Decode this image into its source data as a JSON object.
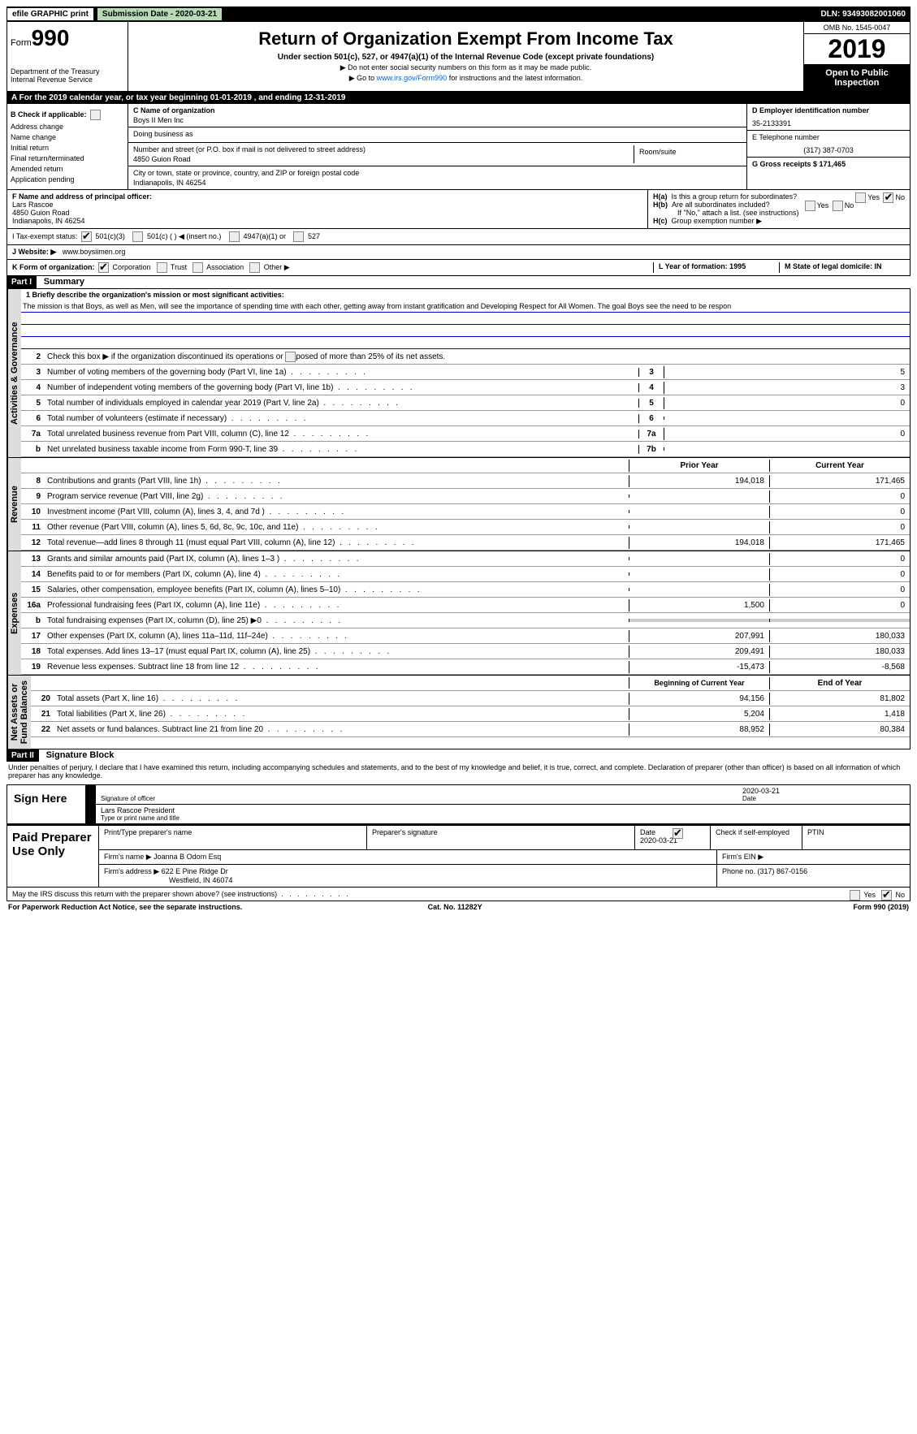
{
  "topbar": {
    "efile": "efile GRAPHIC print",
    "submission": "Submission Date - 2020-03-21",
    "dln": "DLN: 93493082001060"
  },
  "header": {
    "form_prefix": "Form",
    "form_num": "990",
    "dept": "Department of the Treasury\nInternal Revenue Service",
    "title": "Return of Organization Exempt From Income Tax",
    "subtitle": "Under section 501(c), 527, or 4947(a)(1) of the Internal Revenue Code (except private foundations)",
    "note1": "▶ Do not enter social security numbers on this form as it may be made public.",
    "note2_prefix": "▶ Go to ",
    "note2_link": "www.irs.gov/Form990",
    "note2_suffix": " for instructions and the latest information.",
    "omb": "OMB No. 1545-0047",
    "year": "2019",
    "open": "Open to Public Inspection"
  },
  "row_a": "A   For the 2019 calendar year, or tax year beginning 01-01-2019        , and ending 12-31-2019",
  "section_b": {
    "b_label": "B Check if applicable:",
    "checks": [
      "Address change",
      "Name change",
      "Initial return",
      "Final return/terminated",
      "Amended return",
      "Application pending"
    ],
    "c_label": "C Name of organization",
    "c_val": "Boys II Men Inc",
    "dba_label": "Doing business as",
    "dba_val": "",
    "street_label": "Number and street (or P.O. box if mail is not delivered to street address)",
    "street_val": "4850 Guion Road",
    "room_label": "Room/suite",
    "city_label": "City or town, state or province, country, and ZIP or foreign postal code",
    "city_val": "Indianapolis, IN   46254",
    "d_label": "D Employer identification number",
    "d_val": "35-2133391",
    "e_label": "E Telephone number",
    "e_val": "(317) 387-0703",
    "g_label": "G Gross receipts $ 171,465"
  },
  "row_f": {
    "f_label": "F  Name and address of principal officer:",
    "f_name": "Lars Rascoe",
    "f_addr1": "4850 Guion Road",
    "f_addr2": "Indianapolis, IN   46254",
    "ha_label": "H(a)",
    "ha_text": "Is this a group return for subordinates?",
    "hb_label": "H(b)",
    "hb_text": "Are all subordinates included?",
    "hb_note": "If \"No,\" attach a list. (see instructions)",
    "hc_label": "H(c)",
    "hc_text": "Group exemption number ▶"
  },
  "row_i": {
    "i_label": "I     Tax-exempt status:",
    "opts": [
      "501(c)(3)",
      "501(c) (  ) ◀ (insert no.)",
      "4947(a)(1) or",
      "527"
    ]
  },
  "row_j": {
    "j_label": "J    Website: ▶",
    "j_val": "www.boysiimen.org"
  },
  "row_k": {
    "k_label": "K Form of organization:",
    "opts": [
      "Corporation",
      "Trust",
      "Association",
      "Other ▶"
    ],
    "l_label": "L Year of formation: 1995",
    "m_label": "M State of legal domicile: IN"
  },
  "part1": {
    "hdr": "Part I",
    "title": "Summary",
    "line1_label": "1  Briefly describe the organization's mission or most significant activities:",
    "line1_text": "The mission is that Boys, as well as Men, will see the importance of spending time with each other, getting away from instant gratification and Developing Respect for All Women. The goal Boys see the need to be respon",
    "line2": "Check this box ▶       if the organization discontinued its operations or disposed of more than 25% of its net assets.",
    "rows_ag": [
      {
        "n": "3",
        "t": "Number of voting members of the governing body (Part VI, line 1a)",
        "nb": "3",
        "v": "5"
      },
      {
        "n": "4",
        "t": "Number of independent voting members of the governing body (Part VI, line 1b)",
        "nb": "4",
        "v": "3"
      },
      {
        "n": "5",
        "t": "Total number of individuals employed in calendar year 2019 (Part V, line 2a)",
        "nb": "5",
        "v": "0"
      },
      {
        "n": "6",
        "t": "Total number of volunteers (estimate if necessary)",
        "nb": "6",
        "v": ""
      },
      {
        "n": "7a",
        "t": "Total unrelated business revenue from Part VIII, column (C), line 12",
        "nb": "7a",
        "v": "0"
      },
      {
        "n": "b",
        "t": "Net unrelated business taxable income from Form 990-T, line 39",
        "nb": "7b",
        "v": ""
      }
    ],
    "col_hdr": {
      "c1": "Prior Year",
      "c2": "Current Year"
    },
    "rows_rev": [
      {
        "n": "8",
        "t": "Contributions and grants (Part VIII, line 1h)",
        "c1": "194,018",
        "c2": "171,465"
      },
      {
        "n": "9",
        "t": "Program service revenue (Part VIII, line 2g)",
        "c1": "",
        "c2": "0"
      },
      {
        "n": "10",
        "t": "Investment income (Part VIII, column (A), lines 3, 4, and 7d )",
        "c1": "",
        "c2": "0"
      },
      {
        "n": "11",
        "t": "Other revenue (Part VIII, column (A), lines 5, 6d, 8c, 9c, 10c, and 11e)",
        "c1": "",
        "c2": "0"
      },
      {
        "n": "12",
        "t": "Total revenue—add lines 8 through 11 (must equal Part VIII, column (A), line 12)",
        "c1": "194,018",
        "c2": "171,465"
      }
    ],
    "rows_exp": [
      {
        "n": "13",
        "t": "Grants and similar amounts paid (Part IX, column (A), lines 1–3 )",
        "c1": "",
        "c2": "0"
      },
      {
        "n": "14",
        "t": "Benefits paid to or for members (Part IX, column (A), line 4)",
        "c1": "",
        "c2": "0"
      },
      {
        "n": "15",
        "t": "Salaries, other compensation, employee benefits (Part IX, column (A), lines 5–10)",
        "c1": "",
        "c2": "0"
      },
      {
        "n": "16a",
        "t": "Professional fundraising fees (Part IX, column (A), line 11e)",
        "c1": "1,500",
        "c2": "0"
      },
      {
        "n": "b",
        "t": "Total fundraising expenses (Part IX, column (D), line 25) ▶0",
        "c1": "GREY",
        "c2": "GREY"
      },
      {
        "n": "17",
        "t": "Other expenses (Part IX, column (A), lines 11a–11d, 11f–24e)",
        "c1": "207,991",
        "c2": "180,033"
      },
      {
        "n": "18",
        "t": "Total expenses. Add lines 13–17 (must equal Part IX, column (A), line 25)",
        "c1": "209,491",
        "c2": "180,033"
      },
      {
        "n": "19",
        "t": "Revenue less expenses. Subtract line 18 from line 12",
        "c1": "-15,473",
        "c2": "-8,568"
      }
    ],
    "col_hdr2": {
      "c1": "Beginning of Current Year",
      "c2": "End of Year"
    },
    "rows_net": [
      {
        "n": "20",
        "t": "Total assets (Part X, line 16)",
        "c1": "94,156",
        "c2": "81,802"
      },
      {
        "n": "21",
        "t": "Total liabilities (Part X, line 26)",
        "c1": "5,204",
        "c2": "1,418"
      },
      {
        "n": "22",
        "t": "Net assets or fund balances. Subtract line 21 from line 20",
        "c1": "88,952",
        "c2": "80,384"
      }
    ],
    "vtabs": {
      "ag": "Activities & Governance",
      "rev": "Revenue",
      "exp": "Expenses",
      "net": "Net Assets or\nFund Balances"
    }
  },
  "part2": {
    "hdr": "Part II",
    "title": "Signature Block",
    "declaration": "Under penalties of perjury, I declare that I have examined this return, including accompanying schedules and statements, and to the best of my knowledge and belief, it is true, correct, and complete. Declaration of preparer (other than officer) is based on all information of which preparer has any knowledge.",
    "sign_here": "Sign Here",
    "sig_date": "2020-03-21",
    "sig_of_officer": "Signature of officer",
    "date_lbl": "Date",
    "name_title": "Lars Rascoe  President",
    "name_title_lbl": "Type or print name and title"
  },
  "paid": {
    "label": "Paid Preparer Use Only",
    "r1": {
      "a": "Print/Type preparer's name",
      "b": "Preparer's signature",
      "c": "Date\n2020-03-21",
      "d": "Check        if self-employed",
      "e": "PTIN"
    },
    "r2": {
      "a": "Firm's name      ▶  Joanna B Odom Esq",
      "b": "Firm's EIN ▶"
    },
    "r3": {
      "a": "Firm's address ▶ 622 E Pine Ridge Dr",
      "b": "Phone no. (317) 867-0156"
    },
    "r3b": "Westfield, IN   46074"
  },
  "may_irs": "May the IRS discuss this return with the preparer shown above? (see instructions)",
  "footer": {
    "l": "For Paperwork Reduction Act Notice, see the separate instructions.",
    "m": "Cat. No. 11282Y",
    "r": "Form 990 (2019)"
  }
}
